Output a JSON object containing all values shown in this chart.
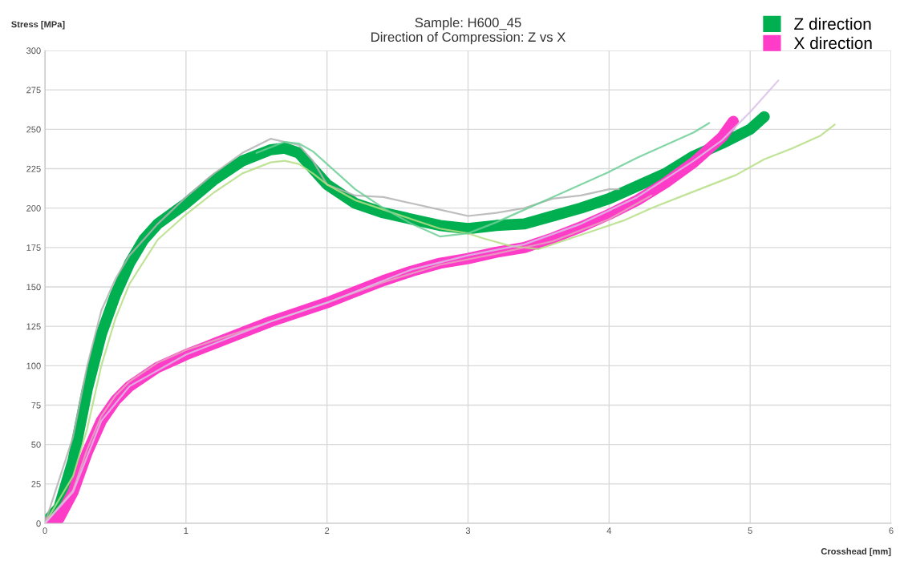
{
  "chart_data": {
    "type": "line",
    "title": "Sample: H600_45\nDirection of Compression: Z vs X",
    "xlabel": "Crosshead [mm]",
    "ylabel": "Stress [MPa]",
    "xlim": [
      0,
      6
    ],
    "xticks": [
      0,
      1,
      2,
      3,
      4,
      5,
      6
    ],
    "ylim": [
      0,
      300
    ],
    "yticks": [
      0,
      25,
      50,
      75,
      100,
      125,
      150,
      175,
      200,
      225,
      250,
      275,
      300
    ],
    "grid": true,
    "legend": "top right",
    "marker": "none",
    "line_style": "solid",
    "series": [
      {
        "color": "#b3b3b3",
        "x": [
          0,
          0.2,
          0.3,
          0.4,
          0.5,
          0.6,
          0.8,
          1.0,
          1.2,
          1.4,
          1.6,
          1.8,
          1.9,
          2.0,
          2.2,
          2.4,
          2.6,
          2.8,
          3.0,
          3.2,
          3.4,
          3.6,
          3.8,
          4.0,
          4.07
        ],
        "values": [
          0,
          55,
          100,
          135,
          155,
          170,
          190,
          207,
          222,
          235,
          244,
          240,
          230,
          215,
          208,
          207,
          203,
          199,
          195,
          197,
          200,
          206,
          208,
          212,
          212
        ]
      },
      {
        "color": "#b5de85",
        "x": [
          0,
          0.2,
          0.3,
          0.4,
          0.5,
          0.6,
          0.8,
          1.0,
          1.2,
          1.4,
          1.6,
          1.7,
          1.8,
          1.9,
          2.0,
          2.2,
          2.4,
          2.6,
          2.8,
          3.0,
          3.1,
          3.3,
          3.5,
          3.7,
          3.9,
          4.1,
          4.3,
          4.5,
          4.7,
          4.9,
          5.1,
          5.3,
          5.5,
          5.6
        ],
        "values": [
          0,
          30,
          60,
          100,
          130,
          152,
          180,
          196,
          210,
          222,
          229,
          230,
          228,
          222,
          215,
          205,
          199,
          193,
          187,
          184,
          181,
          176,
          174,
          180,
          186,
          192,
          200,
          207,
          214,
          221,
          231,
          238,
          246,
          253
        ]
      },
      {
        "color": "#6ccf96",
        "x": [
          1.5,
          1.7,
          1.8,
          1.9,
          2.0,
          2.2,
          2.4,
          2.6,
          2.8,
          3.0,
          3.2,
          3.4,
          3.6,
          3.8,
          4.0,
          4.2,
          4.4,
          4.6,
          4.71
        ],
        "values": [
          235,
          242,
          241,
          236,
          228,
          212,
          200,
          190,
          182,
          184,
          191,
          199,
          207,
          215,
          223,
          232,
          240,
          248,
          254
        ]
      },
      {
        "color": "#e3a6bd",
        "x": [
          0,
          0.2,
          0.3,
          0.4,
          0.5,
          0.6,
          0.8,
          1.0,
          1.2,
          1.4,
          1.6,
          2.0,
          2.4,
          2.8,
          3.2,
          3.6,
          4.0,
          4.3
        ],
        "values": [
          0,
          21,
          47,
          68,
          81,
          90,
          102,
          110,
          116,
          122,
          128,
          140,
          153,
          164,
          171,
          179,
          193,
          208
        ]
      },
      {
        "color": "#d9bfe6",
        "x": [
          0,
          0.2,
          0.4,
          0.6,
          1.0,
          1.6,
          2.0,
          2.6,
          3.0,
          3.4,
          3.8,
          4.2,
          4.6,
          4.8,
          5.0,
          5.2
        ],
        "values": [
          0,
          20,
          65,
          87,
          107,
          128,
          140,
          161,
          170,
          177,
          190,
          207,
          230,
          243,
          261,
          281
        ]
      },
      {
        "name": "Z direction",
        "color": "#00b050",
        "x": [
          0,
          0.1,
          0.2,
          0.3,
          0.4,
          0.5,
          0.6,
          0.7,
          0.8,
          1.0,
          1.2,
          1.4,
          1.6,
          1.7,
          1.8,
          1.9,
          2.0,
          2.2,
          2.4,
          2.6,
          2.8,
          3.0,
          3.2,
          3.4,
          3.6,
          3.8,
          4.0,
          4.2,
          4.4,
          4.6,
          4.8,
          5.0,
          5.1
        ],
        "values": [
          0,
          10,
          40,
          85,
          120,
          145,
          165,
          180,
          190,
          203,
          218,
          230,
          237,
          238,
          235,
          225,
          215,
          203,
          197,
          193,
          189,
          187,
          189,
          190,
          195,
          200,
          206,
          214,
          222,
          233,
          241,
          250,
          258
        ]
      },
      {
        "name": "X direction",
        "color": "#ff3cc8",
        "x": [
          0,
          0.1,
          0.2,
          0.3,
          0.4,
          0.5,
          0.6,
          0.8,
          1.0,
          1.2,
          1.4,
          1.6,
          1.8,
          2.0,
          2.2,
          2.4,
          2.6,
          2.8,
          3.0,
          3.2,
          3.4,
          3.6,
          3.8,
          4.0,
          4.2,
          4.4,
          4.6,
          4.8,
          4.88
        ],
        "values": [
          0,
          3,
          20,
          45,
          65,
          78,
          87,
          99,
          107,
          114,
          121,
          128,
          134,
          140,
          147,
          154,
          160,
          165,
          168,
          172,
          175,
          181,
          188,
          196,
          205,
          216,
          229,
          245,
          255
        ]
      }
    ]
  }
}
